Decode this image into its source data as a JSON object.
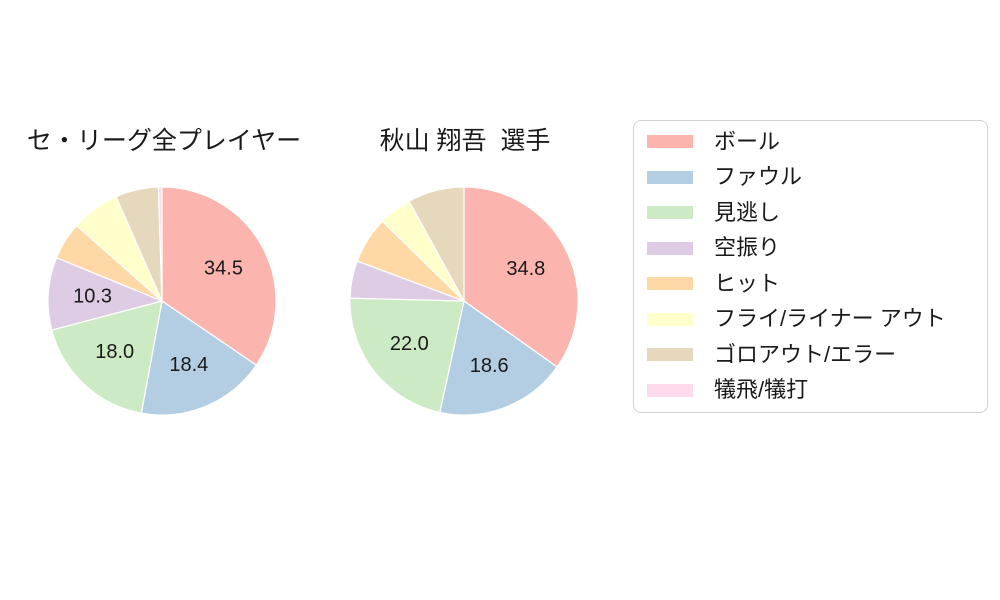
{
  "figure": {
    "background": "#ffffff",
    "text_color": "#1a1a1a"
  },
  "legend": {
    "items": [
      {
        "key": "ball",
        "label": "ボール",
        "color": "#fbb4ae"
      },
      {
        "key": "foul",
        "label": "ファウル",
        "color": "#b3cde3"
      },
      {
        "key": "called-strike",
        "label": "見逃し",
        "color": "#ccebc5"
      },
      {
        "key": "swinging-strike",
        "label": "空振り",
        "color": "#decbe4"
      },
      {
        "key": "hit",
        "label": "ヒット",
        "color": "#fed9a6"
      },
      {
        "key": "fly-liner-out",
        "label": "フライ/ライナー アウト",
        "color": "#ffffcc"
      },
      {
        "key": "ground-out-error",
        "label": "ゴロアウト/エラー",
        "color": "#e5d8bd"
      },
      {
        "key": "sacrifice",
        "label": "犠飛/犠打",
        "color": "#fddaec"
      }
    ]
  },
  "chart_data": [
    {
      "type": "pie",
      "title": "セ・リーグ全プレイヤー",
      "categories": [
        "ボール",
        "ファウル",
        "見逃し",
        "空振り",
        "ヒット",
        "フライ/ライナー アウト",
        "ゴロアウト/エラー",
        "犠飛/犠打"
      ],
      "values": [
        34.5,
        18.4,
        18.0,
        10.3,
        5.3,
        6.9,
        6.1,
        0.5
      ],
      "value_labels": [
        "34.5",
        "18.4",
        "18.0",
        "10.3",
        "",
        "",
        "",
        ""
      ],
      "colors": [
        "#fbb4ae",
        "#b3cde3",
        "#ccebc5",
        "#decbe4",
        "#fed9a6",
        "#ffffcc",
        "#e5d8bd",
        "#fddaec"
      ],
      "start_angle_deg_from_top": 0,
      "direction": "clockwise",
      "legend_position": "right"
    },
    {
      "type": "pie",
      "title": "秋山 翔吾  選手",
      "categories": [
        "ボール",
        "ファウル",
        "見逃し",
        "空振り",
        "ヒット",
        "フライ/ライナー アウト",
        "ゴロアウト/エラー",
        "犠飛/犠打"
      ],
      "values": [
        34.8,
        18.6,
        22.0,
        5.3,
        6.6,
        4.7,
        8.0,
        0
      ],
      "value_labels": [
        "34.8",
        "18.6",
        "22.0",
        "",
        "",
        "",
        "",
        ""
      ],
      "colors": [
        "#fbb4ae",
        "#b3cde3",
        "#ccebc5",
        "#decbe4",
        "#fed9a6",
        "#ffffcc",
        "#e5d8bd",
        "#fddaec"
      ],
      "start_angle_deg_from_top": 0,
      "direction": "clockwise",
      "legend_position": "right"
    }
  ]
}
